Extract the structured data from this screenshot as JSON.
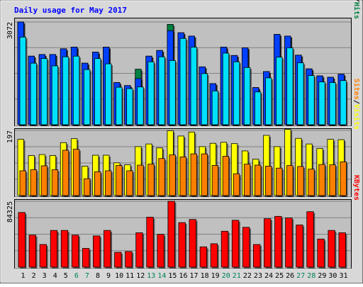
{
  "chart_data": {
    "type": "bar",
    "title": "Daily usage for May 2017",
    "categories": [
      "1",
      "2",
      "3",
      "4",
      "5",
      "6",
      "7",
      "8",
      "9",
      "10",
      "11",
      "12",
      "13",
      "14",
      "15",
      "16",
      "17",
      "18",
      "19",
      "20",
      "21",
      "22",
      "23",
      "24",
      "25",
      "26",
      "27",
      "28",
      "29",
      "30",
      "31"
    ],
    "weekend_days": [
      "6",
      "7",
      "13",
      "14",
      "20",
      "21",
      "27",
      "28"
    ],
    "colors": {
      "hits": "#008040",
      "files": "#0040ff",
      "pages": "#00e0ff",
      "visits": "#ffff00",
      "sites": "#ff8000",
      "kbytes": "#ff0000",
      "title": "#0000ff",
      "weekend_label": "#00805c",
      "plot_bg": "#c0c0c0",
      "frame": "#d8d8d8"
    },
    "panels": [
      {
        "id": "hits-files-pages",
        "ymax_label": "3072",
        "ymax": 3072,
        "legend": [
          {
            "label": "Pages",
            "color": "#00e0ff"
          },
          {
            "label": "/",
            "color": "#000000"
          },
          {
            "label": "Files",
            "color": "#0040ff"
          },
          {
            "label": "/",
            "color": "#000000"
          },
          {
            "label": "Hits",
            "color": "#008040"
          }
        ],
        "series": [
          {
            "name": "Hits",
            "values": [
              3072,
              2050,
              2100,
              2100,
              2270,
              2320,
              1840,
              2170,
              2320,
              1260,
              1170,
              1660,
              2050,
              2220,
              3000,
              2750,
              2650,
              1730,
              1230,
              2320,
              2070,
              2300,
              1110,
              1590,
              2700,
              2650,
              2080,
              1670,
              1460,
              1420,
              1510
            ]
          },
          {
            "name": "Files",
            "values": [
              3072,
              2050,
              2100,
              2100,
              2270,
              2320,
              1840,
              2170,
              2320,
              1260,
              1170,
              1380,
              2050,
              2220,
              2810,
              2750,
              2650,
              1730,
              1230,
              2320,
              2070,
              2300,
              1110,
              1590,
              2700,
              2650,
              2080,
              1670,
              1460,
              1420,
              1510
            ]
          },
          {
            "name": "Pages",
            "values": [
              2620,
              1840,
              1980,
              1760,
              2030,
              2050,
              1650,
              1980,
              1820,
              1120,
              1080,
              1130,
              1880,
              2030,
              1920,
              2580,
              2320,
              1530,
              1010,
              2140,
              1880,
              1710,
              980,
              1400,
              2020,
              2300,
              1850,
              1470,
              1280,
              1260,
              1320
            ]
          }
        ]
      },
      {
        "id": "visits-sites",
        "ymax_label": "197",
        "ymax": 197,
        "legend": [
          {
            "label": "Sites",
            "color": "#ff8000"
          },
          {
            "label": "/",
            "color": "#000000"
          },
          {
            "label": "Visits",
            "color": "#ffff00"
          }
        ],
        "series": [
          {
            "name": "Visits",
            "values": [
              170,
              121,
              124,
              121,
              160,
              172,
              89,
              122,
              122,
              99,
              93,
              148,
              156,
              144,
              196,
              180,
              192,
              148,
              158,
              161,
              157,
              135,
              110,
              182,
              148,
              200,
              173,
              156,
              142,
              170,
              169
            ]
          },
          {
            "name": "Sites",
            "values": [
              75,
              78,
              90,
              78,
              137,
              140,
              51,
              72,
              75,
              91,
              75,
              92,
              95,
              112,
              123,
              117,
              126,
              126,
              91,
              119,
              66,
              95,
              92,
              89,
              83,
              91,
              88,
              80,
              94,
              93,
              102
            ]
          }
        ]
      },
      {
        "id": "kbytes",
        "ymax_label": "84325",
        "ymax": 84325,
        "legend": [
          {
            "label": "KBytes",
            "color": "#ff0000"
          }
        ],
        "series": [
          {
            "name": "KBytes",
            "values": [
              70000,
              41000,
              29000,
              47000,
              47000,
              41000,
              24000,
              40000,
              47000,
              19000,
              20000,
              44000,
              64000,
              42000,
              84325,
              57000,
              61000,
              26000,
              30000,
              46000,
              60000,
              51000,
              29000,
              62000,
              65000,
              63000,
              54000,
              71000,
              36000,
              47000,
              44000
            ]
          }
        ]
      }
    ]
  }
}
